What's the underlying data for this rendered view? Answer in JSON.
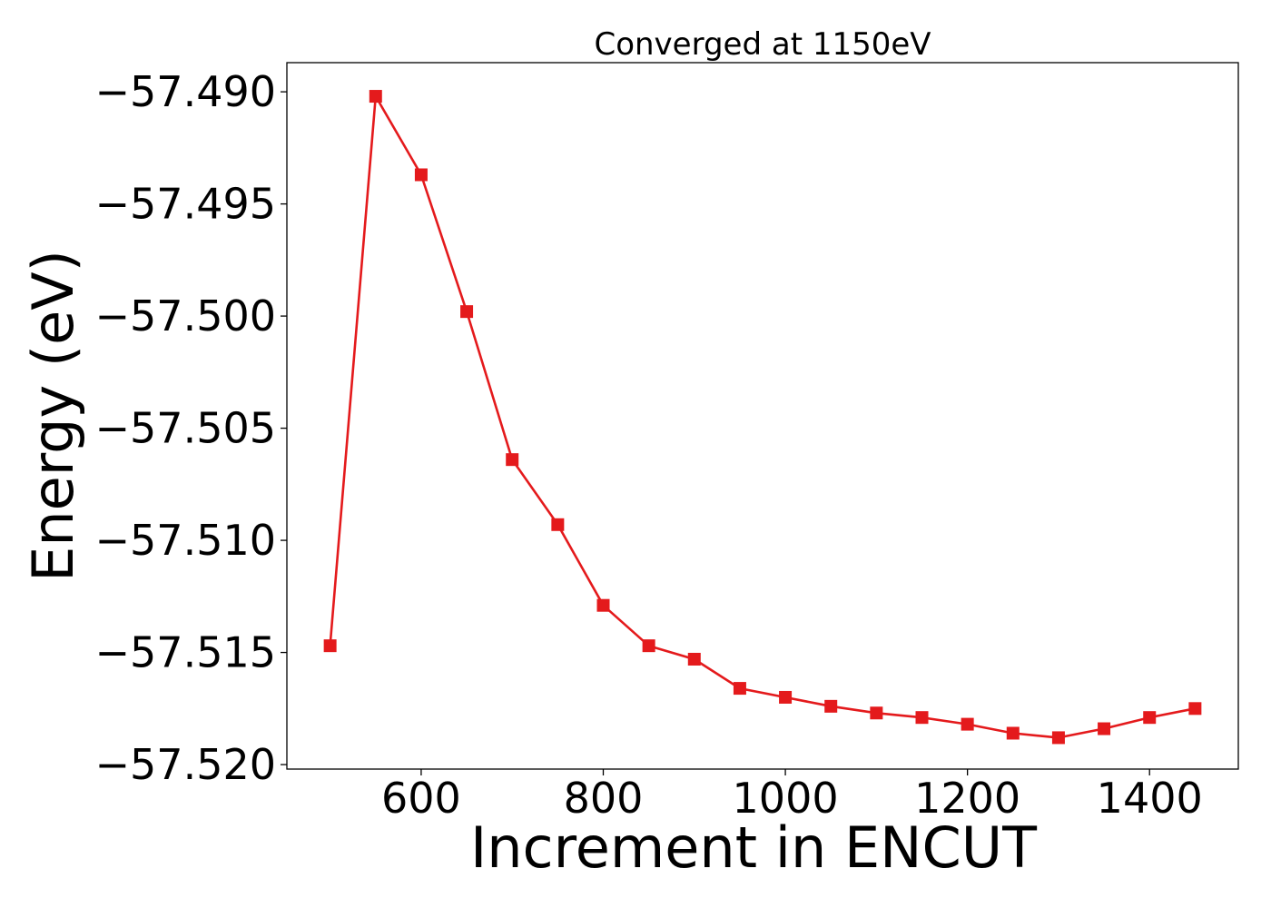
{
  "chart_data": {
    "type": "line",
    "title": "Converged at 1150eV",
    "xlabel": "Increment in ENCUT",
    "ylabel": "Energy (eV)",
    "xlim": [
      452.5,
      1497.5
    ],
    "ylim": [
      -57.5202,
      -57.4887
    ],
    "x_ticks": [
      600,
      800,
      1000,
      1200,
      1400
    ],
    "x_tick_labels": [
      "600",
      "800",
      "1000",
      "1200",
      "1400"
    ],
    "y_ticks": [
      -57.49,
      -57.495,
      -57.5,
      -57.505,
      -57.51,
      -57.515,
      -57.52
    ],
    "y_tick_labels": [
      "−57.490",
      "−57.495",
      "−57.500",
      "−57.505",
      "−57.510",
      "−57.515",
      "−57.520"
    ],
    "grid": false,
    "legend": "none",
    "series": [
      {
        "color": "#e41a1c",
        "marker": "square",
        "x": [
          500,
          550,
          600,
          650,
          700,
          750,
          800,
          850,
          900,
          950,
          1000,
          1050,
          1100,
          1150,
          1200,
          1250,
          1300,
          1350,
          1400,
          1450
        ],
        "y": [
          -57.5147,
          -57.4902,
          -57.4937,
          -57.4998,
          -57.5064,
          -57.5093,
          -57.5129,
          -57.5147,
          -57.5153,
          -57.5166,
          -57.517,
          -57.5174,
          -57.5177,
          -57.5179,
          -57.5182,
          -57.5186,
          -57.5188,
          -57.5184,
          -57.5179,
          -57.5175
        ]
      }
    ]
  }
}
